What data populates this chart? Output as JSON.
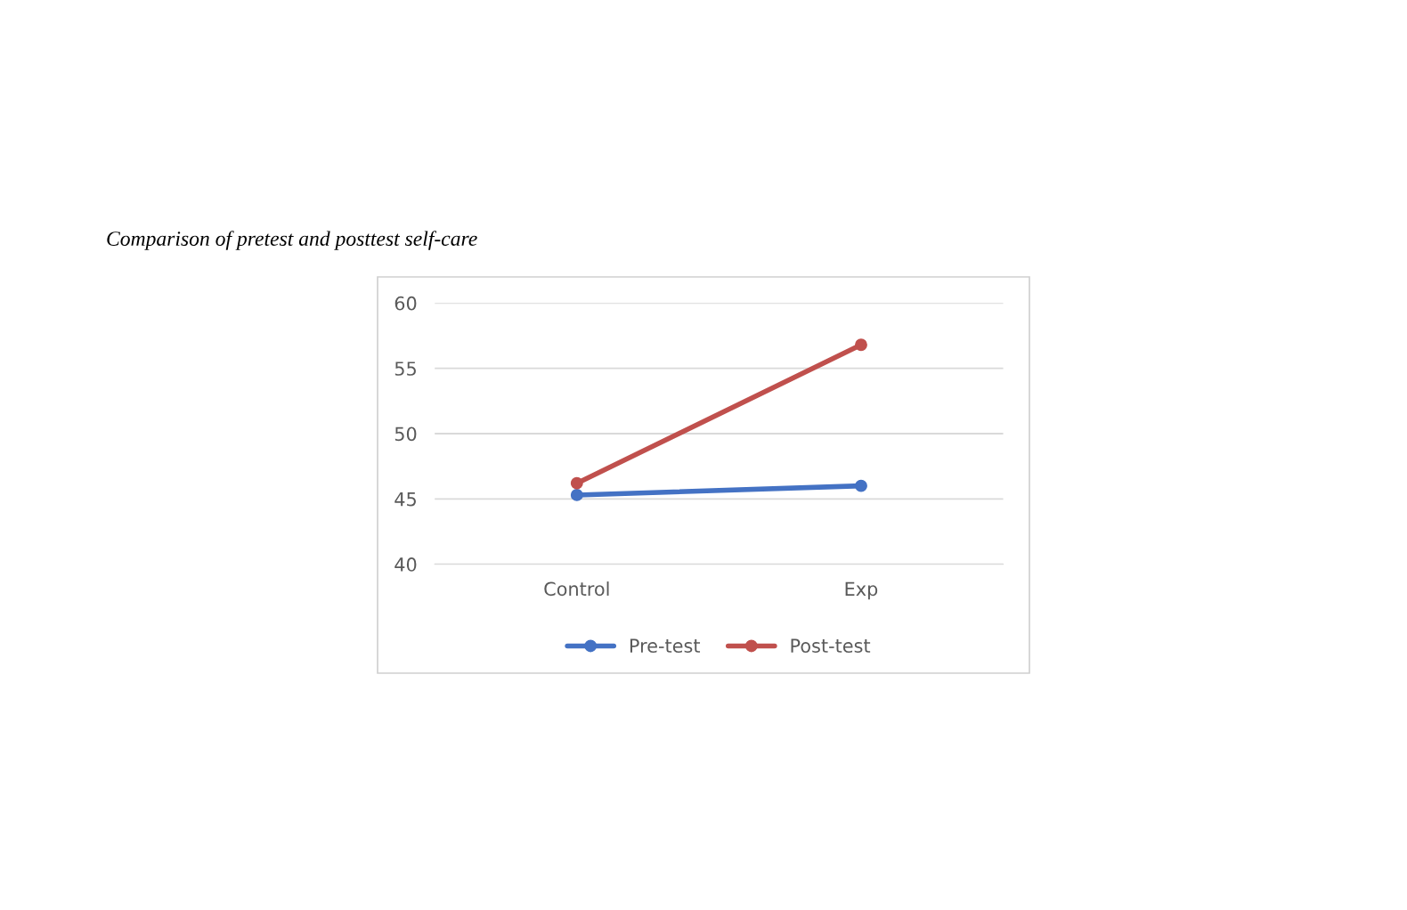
{
  "chart_data": {
    "type": "line",
    "title": "Comparison of pretest and posttest self-care",
    "categories": [
      "Control",
      "Exp"
    ],
    "series": [
      {
        "name": "Pre-test",
        "color": "#4472c4",
        "values": [
          45.3,
          46.0
        ]
      },
      {
        "name": "Post-test",
        "color": "#c0504d",
        "values": [
          46.2,
          56.8
        ]
      }
    ],
    "ylim": [
      40,
      60
    ],
    "yticks": [
      40,
      45,
      50,
      55,
      60
    ],
    "grid": "y",
    "legend": "bottom",
    "marker": "circle",
    "line_style": "solid"
  }
}
